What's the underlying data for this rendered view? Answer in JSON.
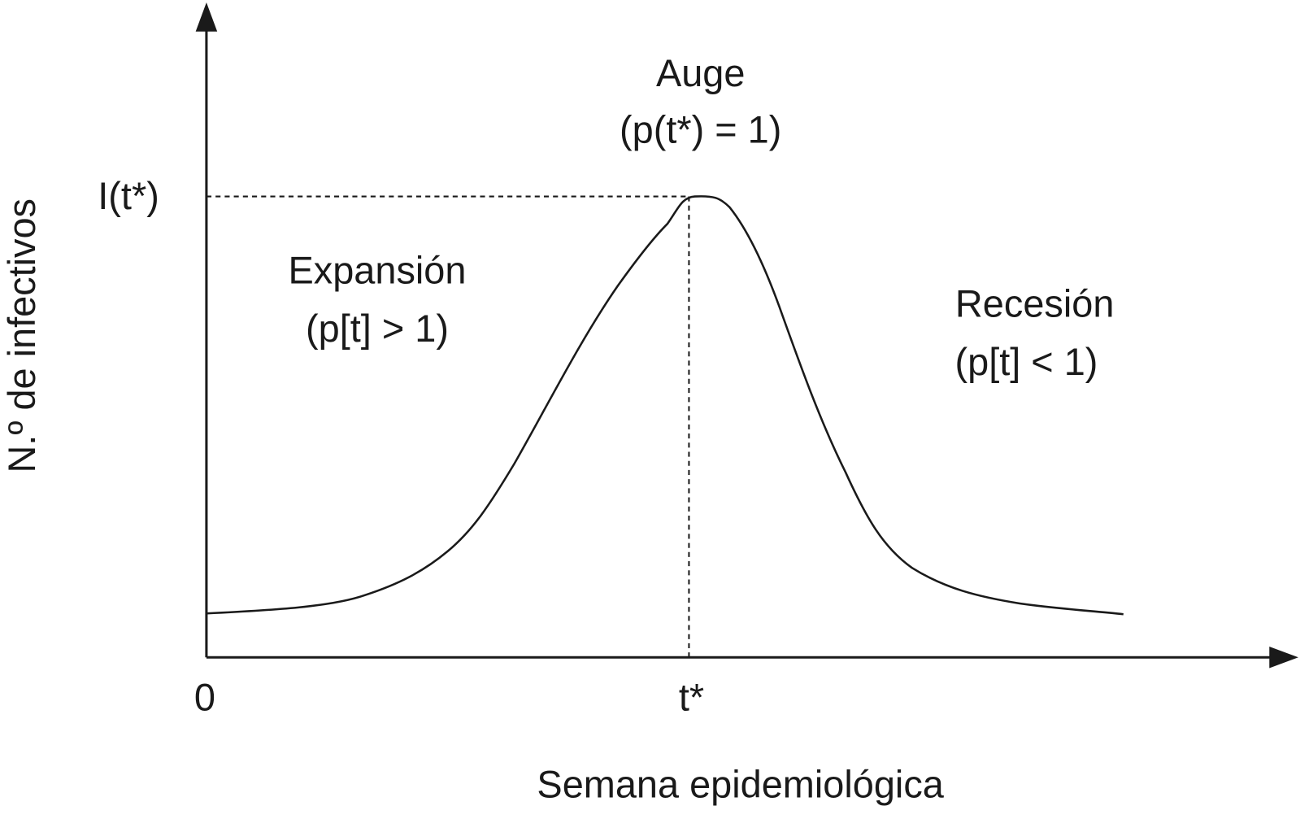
{
  "axes": {
    "y_label": "N.º de infectivos",
    "x_label": "Semana epidemiológica",
    "origin_label": "0",
    "peak_time_label": "t*",
    "peak_value_label": "I(t*)"
  },
  "phases": [
    {
      "name": "Expansión",
      "condition": "(p[t] > 1)"
    },
    {
      "name": "Auge",
      "condition": "(p(t*) = 1)"
    },
    {
      "name": "Recesión",
      "condition": "(p[t] < 1)"
    }
  ]
}
